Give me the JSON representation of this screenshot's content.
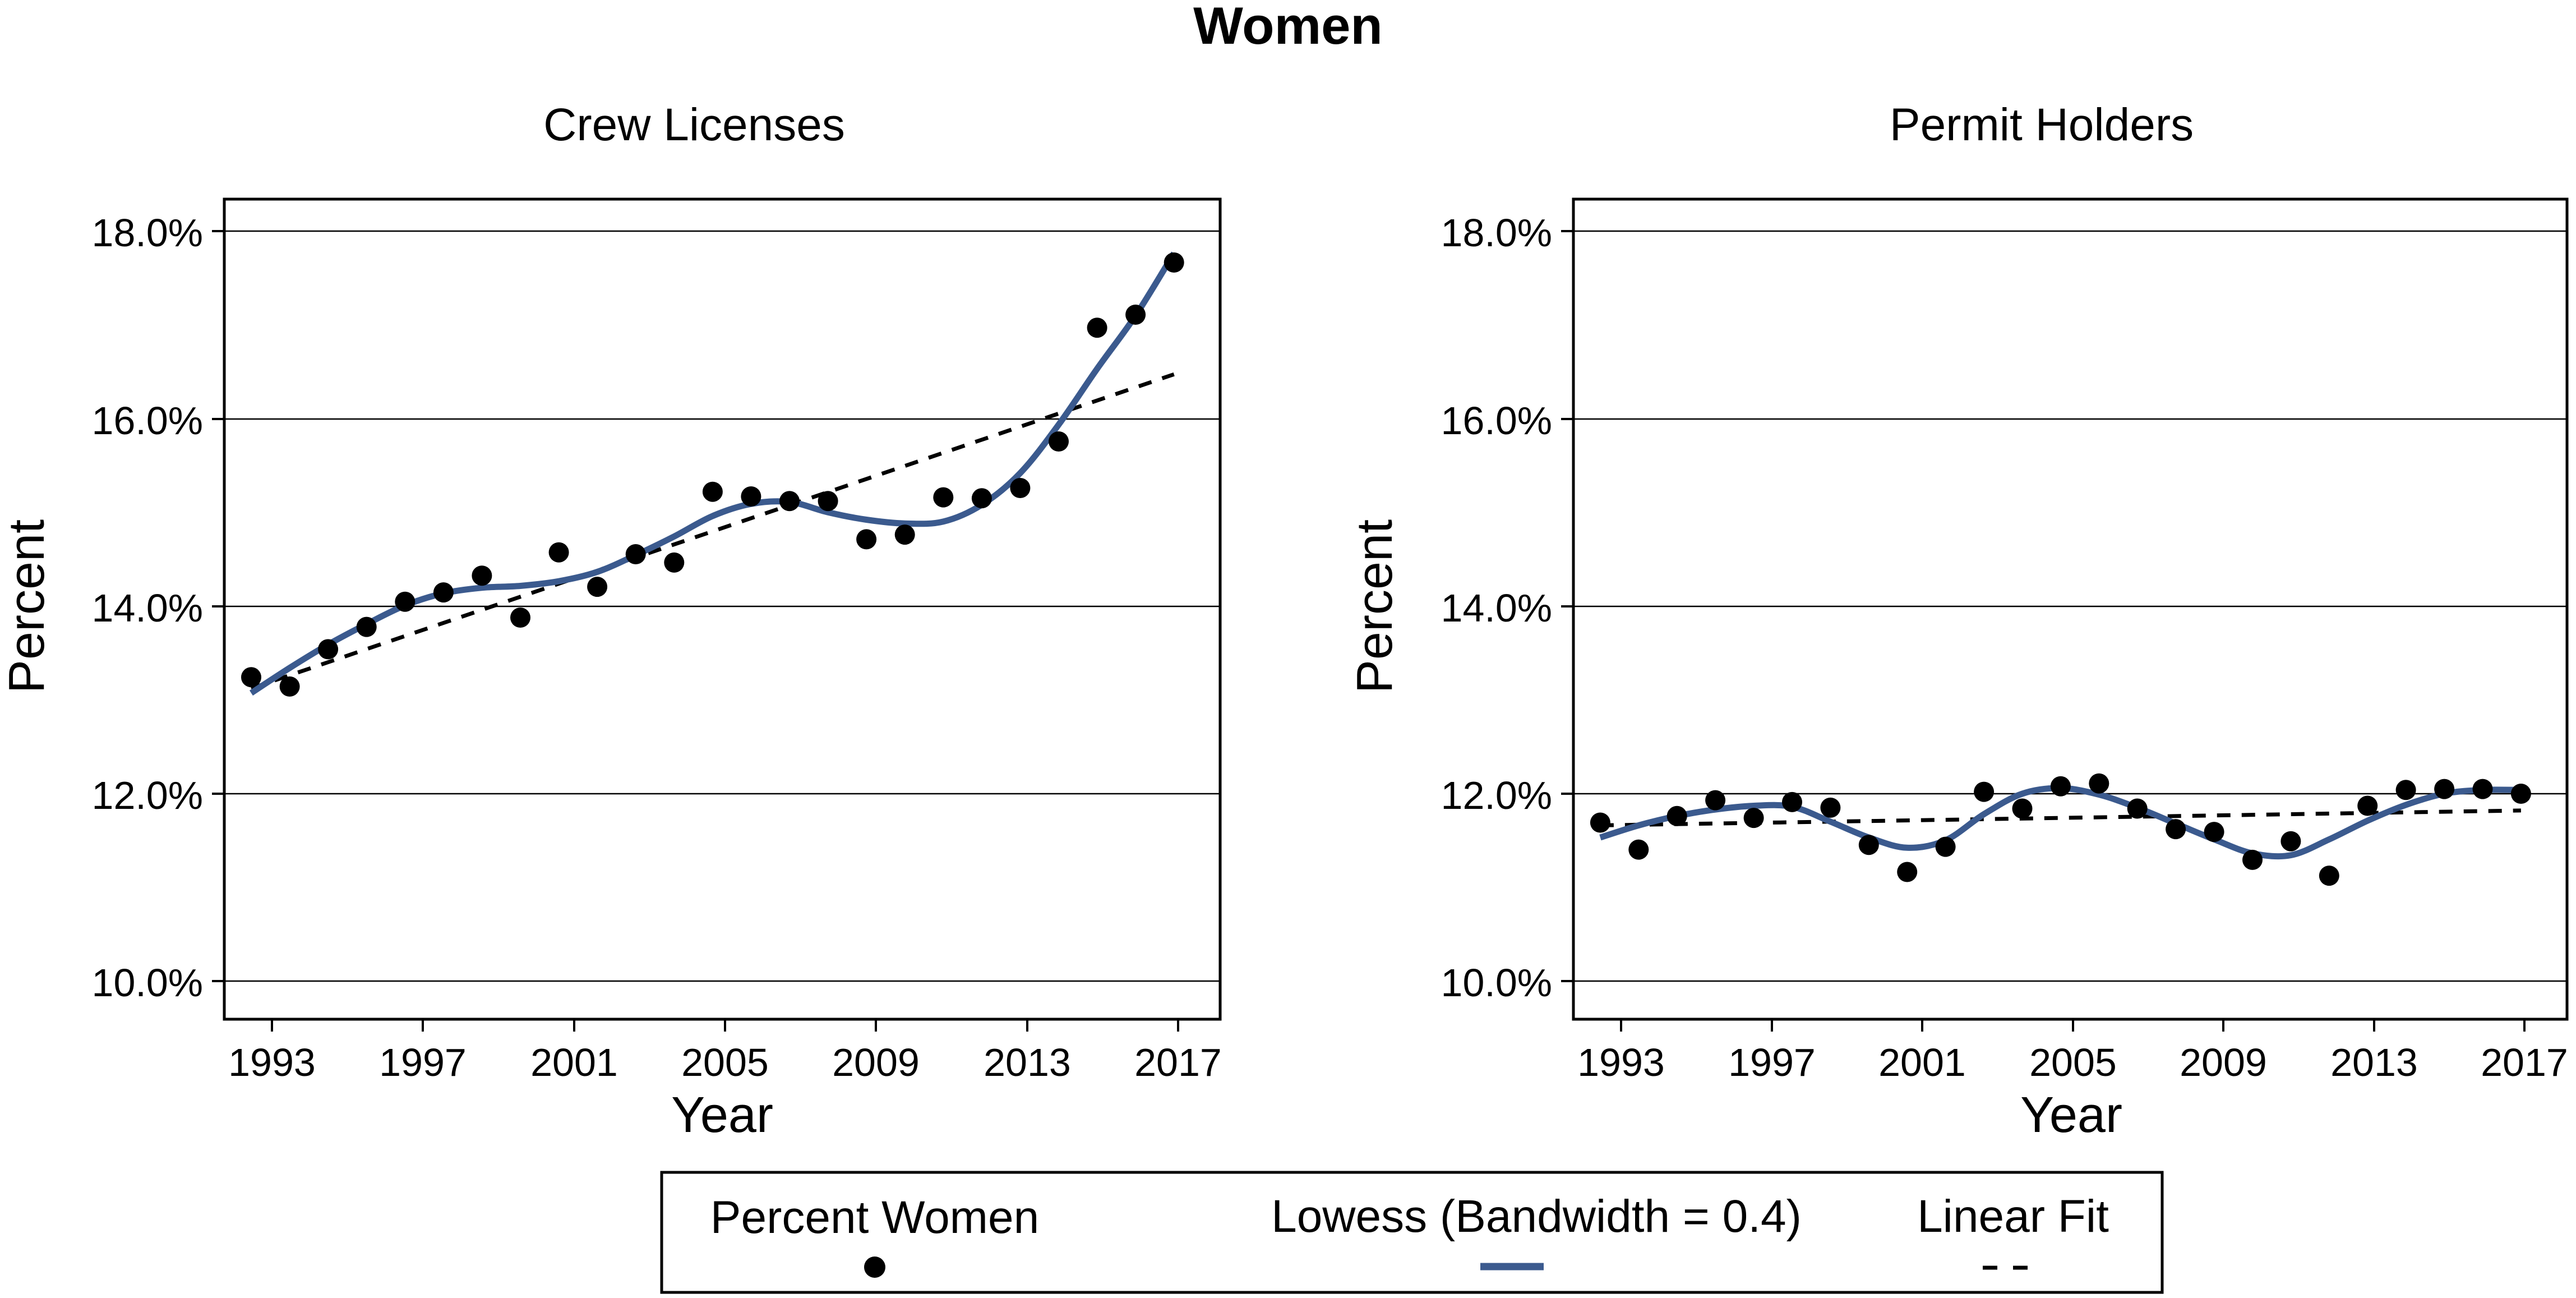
{
  "figure": {
    "title": "Women"
  },
  "colors": {
    "lowess": "#3b5a8e",
    "points": "#000000",
    "linear_fit": "#000000",
    "grid": "#000000"
  },
  "legend": {
    "location": "bottom-center",
    "items": [
      {
        "label": "Percent Women",
        "symbol": "dot"
      },
      {
        "label": "Lowess (Bandwidth = 0.4)",
        "symbol": "solid-line"
      },
      {
        "label": "Linear Fit",
        "symbol": "dashed-line"
      }
    ]
  },
  "chart_data": [
    {
      "type": "scatter",
      "title": "Crew Licenses",
      "xlabel": "Year",
      "ylabel": "Percent",
      "xlim": [
        1992.3,
        2018.2
      ],
      "ylim": [
        9.6,
        18.4
      ],
      "xticks": [
        1993,
        1997,
        2001,
        2005,
        2009,
        2013,
        2017
      ],
      "yticks": [
        10,
        12,
        14,
        16,
        18
      ],
      "ytick_labels": [
        "10.0%",
        "12.0%",
        "14.0%",
        "16.0%",
        "18.0%"
      ],
      "grid": true,
      "series": [
        {
          "name": "Percent Women",
          "kind": "points",
          "x": [
            1993,
            1994,
            1995,
            1996,
            1997,
            1998,
            1999,
            2000,
            2001,
            2002,
            2003,
            2004,
            2005,
            2006,
            2007,
            2008,
            2009,
            2010,
            2011,
            2012,
            2013,
            2014,
            2015,
            2016,
            2017
          ],
          "values": [
            13.27,
            13.17,
            13.57,
            13.81,
            14.08,
            14.18,
            14.36,
            13.91,
            14.61,
            14.24,
            14.59,
            14.5,
            15.26,
            15.21,
            15.16,
            15.16,
            14.75,
            14.8,
            15.2,
            15.19,
            15.3,
            15.8,
            17.02,
            17.16,
            17.72
          ]
        },
        {
          "name": "Lowess (Bandwidth = 0.4)",
          "kind": "smooth",
          "x": [
            1993,
            1994,
            1995,
            1996,
            1997,
            1998,
            1999,
            2000,
            2001,
            2002,
            2003,
            2004,
            2005,
            2006,
            2007,
            2008,
            2009,
            2010,
            2011,
            2012,
            2013,
            2014,
            2015,
            2016,
            2017
          ],
          "values": [
            13.1,
            13.37,
            13.62,
            13.84,
            14.04,
            14.17,
            14.23,
            14.25,
            14.3,
            14.4,
            14.58,
            14.78,
            15.0,
            15.13,
            15.15,
            15.04,
            14.96,
            14.92,
            14.94,
            15.12,
            15.46,
            15.98,
            16.58,
            17.15,
            17.82
          ]
        },
        {
          "name": "Linear Fit",
          "kind": "line",
          "x": [
            1993,
            2017
          ],
          "values": [
            13.15,
            16.52
          ]
        }
      ]
    },
    {
      "type": "scatter",
      "title": "Permit Holders",
      "xlabel": "Year",
      "ylabel": "Percent",
      "xlim": [
        1992.3,
        2018.2
      ],
      "ylim": [
        9.6,
        18.4
      ],
      "xticks": [
        1993,
        1997,
        2001,
        2005,
        2009,
        2013,
        2017
      ],
      "yticks": [
        10,
        12,
        14,
        16,
        18
      ],
      "ytick_labels": [
        "10.0%",
        "12.0%",
        "14.0%",
        "16.0%",
        "18.0%"
      ],
      "grid": true,
      "series": [
        {
          "name": "Percent Women",
          "kind": "points",
          "x": [
            1993,
            1994,
            1995,
            1996,
            1997,
            1998,
            1999,
            2000,
            2001,
            2002,
            2003,
            2004,
            2005,
            2006,
            2007,
            2008,
            2009,
            2010,
            2011,
            2012,
            2013,
            2014,
            2015,
            2016,
            2017
          ],
          "values": [
            11.71,
            11.42,
            11.78,
            11.95,
            11.76,
            11.93,
            11.87,
            11.47,
            11.18,
            11.45,
            12.04,
            11.86,
            12.1,
            12.13,
            11.86,
            11.64,
            11.61,
            11.31,
            11.51,
            11.14,
            11.89,
            12.06,
            12.07,
            12.07,
            12.02
          ]
        },
        {
          "name": "Lowess (Bandwidth = 0.4)",
          "kind": "smooth",
          "x": [
            1993,
            1994,
            1995,
            1996,
            1997,
            1998,
            1999,
            2000,
            2001,
            2002,
            2003,
            2004,
            2005,
            2006,
            2007,
            2008,
            2009,
            2010,
            2011,
            2012,
            2013,
            2014,
            2015,
            2016,
            2017
          ],
          "values": [
            11.55,
            11.68,
            11.78,
            11.85,
            11.89,
            11.88,
            11.72,
            11.55,
            11.44,
            11.52,
            11.8,
            12.02,
            12.08,
            12.01,
            11.87,
            11.7,
            11.53,
            11.38,
            11.36,
            11.53,
            11.73,
            11.9,
            12.02,
            12.06,
            12.06
          ]
        },
        {
          "name": "Linear Fit",
          "kind": "line",
          "x": [
            1993,
            2017
          ],
          "values": [
            11.68,
            11.84
          ]
        }
      ]
    }
  ]
}
